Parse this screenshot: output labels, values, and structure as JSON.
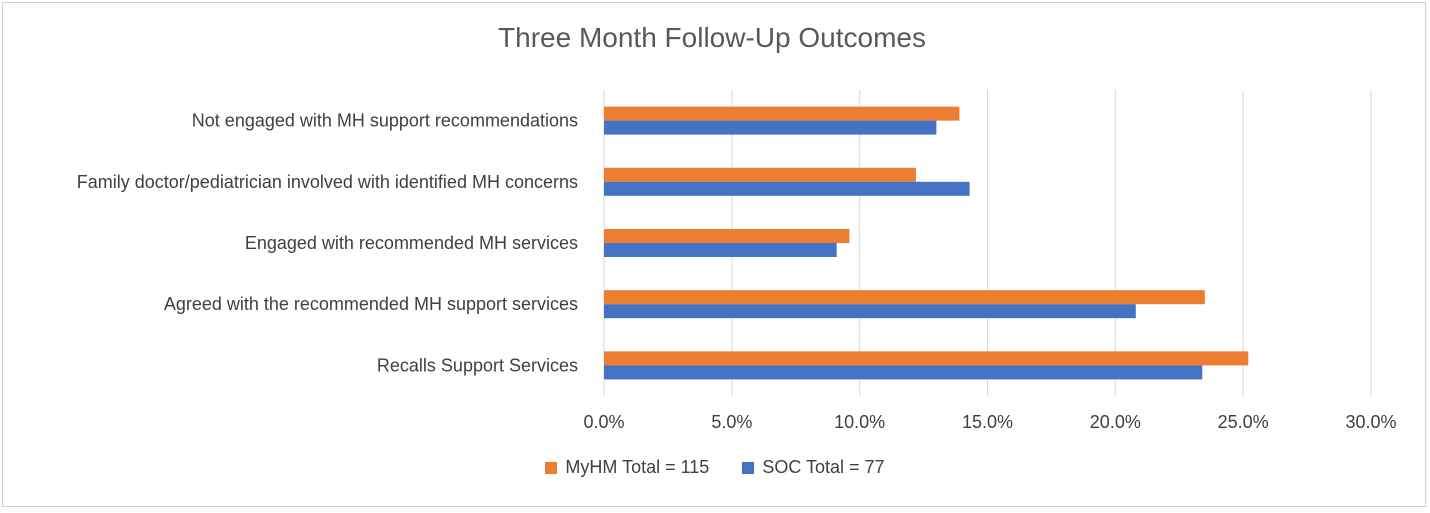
{
  "chart_data": {
    "type": "bar",
    "orientation": "horizontal",
    "title": "Three Month Follow-Up Outcomes",
    "categories": [
      "Not engaged with MH support recommendations",
      "Family doctor/pediatrician involved with identified MH concerns",
      "Engaged with recommended MH services",
      "Agreed with the recommended MH support services",
      "Recalls Support Services"
    ],
    "series": [
      {
        "name": "MyHM Total = 115",
        "color": "#ED7D31",
        "values": [
          13.9,
          12.2,
          9.6,
          23.5,
          25.2
        ]
      },
      {
        "name": "SOC Total = 77",
        "color": "#4472C4",
        "values": [
          13.0,
          14.3,
          9.1,
          20.8,
          23.4
        ]
      }
    ],
    "xlim": [
      0,
      30
    ],
    "xticks": [
      "0.0%",
      "5.0%",
      "10.0%",
      "15.0%",
      "20.0%",
      "25.0%",
      "30.0%"
    ],
    "grid": true,
    "legend_position": "bottom"
  }
}
